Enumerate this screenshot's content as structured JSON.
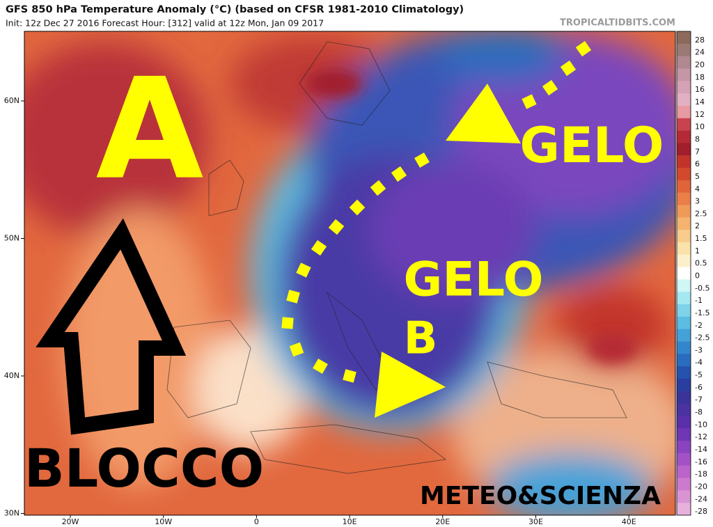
{
  "header": {
    "title": "GFS 850 hPa Temperature Anomaly (°C) (based on CFSR 1981-2010 Climatology)",
    "subtitle": "Init: 12z Dec 27 2016   Forecast Hour: [312]   valid at 12z Mon, Jan 09 2017",
    "credit": "TROPICALTIDBITS.COM"
  },
  "overlays": {
    "high": "A",
    "gelo_north": "GELO",
    "gelo_center": "GELO",
    "low": "B",
    "block": "BLOCCO",
    "watermark": "METEO&SCIENZA"
  },
  "axes": {
    "lat_labels": [
      "60N",
      "50N",
      "40N",
      "30N"
    ],
    "lon_labels": [
      "20W",
      "10W",
      "0",
      "10E",
      "20E",
      "30E",
      "40E"
    ]
  },
  "colorbar": {
    "levels": [
      28,
      24,
      20,
      18,
      16,
      14,
      12,
      10,
      8,
      7,
      6,
      5,
      4,
      3,
      2.5,
      2,
      1.5,
      1,
      0.5,
      0,
      -0.5,
      -1,
      -1.5,
      -2,
      -2.5,
      -3,
      -4,
      -5,
      -6,
      -7,
      -8,
      -10,
      -12,
      -14,
      -16,
      -18,
      -20,
      -24,
      -28
    ],
    "colors": [
      "#8c6a5c",
      "#9c7a74",
      "#b08890",
      "#c496a6",
      "#d4a2b4",
      "#e2b0c2",
      "#e89aa2",
      "#c8434f",
      "#b52a36",
      "#a11e2c",
      "#c2342a",
      "#d2492e",
      "#e0643a",
      "#ea7f48",
      "#f09a5a",
      "#f4b470",
      "#f8cc8c",
      "#fae2aa",
      "#fcf0cc",
      "#ffffff",
      "#d0f6f6",
      "#a4e8f0",
      "#7ed2ea",
      "#5cbce2",
      "#44a2d8",
      "#3486cc",
      "#2a6cbe",
      "#2652ae",
      "#2a3ea0",
      "#3a349a",
      "#4a32a0",
      "#5a30aa",
      "#7036b4",
      "#8a44c0",
      "#a252c6",
      "#ba64ca",
      "#cc7ace",
      "#da94d4",
      "#e8b0dc"
    ]
  }
}
